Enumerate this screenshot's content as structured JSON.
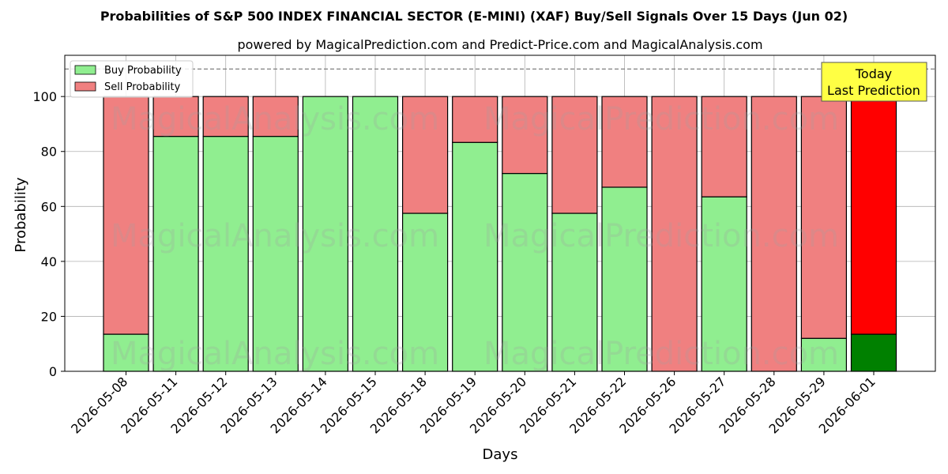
{
  "chart_data": {
    "type": "bar",
    "stacked": true,
    "title": "Probabilities of S&P 500 INDEX FINANCIAL SECTOR (E-MINI) (XAF) Buy/Sell Signals Over 15 Days (Jun 02)",
    "subtitle": "powered by MagicalPrediction.com and Predict-Price.com and MagicalAnalysis.com",
    "xlabel": "Days",
    "ylabel": "Probability",
    "ylim": [
      0,
      115
    ],
    "yticks": [
      0,
      20,
      40,
      60,
      80,
      100
    ],
    "grid": true,
    "legend_position": "top-left",
    "reference_line": 110,
    "categories": [
      "2026-05-08",
      "2026-05-11",
      "2026-05-12",
      "2026-05-13",
      "2026-05-14",
      "2026-05-15",
      "2026-05-18",
      "2026-05-19",
      "2026-05-20",
      "2026-05-21",
      "2026-05-22",
      "2026-05-26",
      "2026-05-27",
      "2026-05-28",
      "2026-05-29",
      "2026-06-01"
    ],
    "series": [
      {
        "name": "Buy Probability",
        "color": "#90ee90",
        "values": [
          13.5,
          85.5,
          85.5,
          85.5,
          100,
          100,
          57.5,
          83.3,
          72,
          57.5,
          67,
          0,
          63.5,
          0,
          12,
          13.5
        ]
      },
      {
        "name": "Sell Probability",
        "color": "#f08080",
        "values": [
          86.5,
          14.5,
          14.5,
          14.5,
          0,
          0,
          42.5,
          16.7,
          28,
          42.5,
          33,
          100,
          36.5,
          100,
          88,
          86.5
        ]
      }
    ],
    "highlight": {
      "index": 15,
      "buy_color": "#008000",
      "sell_color": "#ff0000",
      "label_line1": "Today",
      "label_line2": "Last Prediction",
      "label_color": "#ffff44"
    },
    "watermarks": [
      "MagicalAnalysis.com",
      "MagicalPrediction.com"
    ]
  }
}
